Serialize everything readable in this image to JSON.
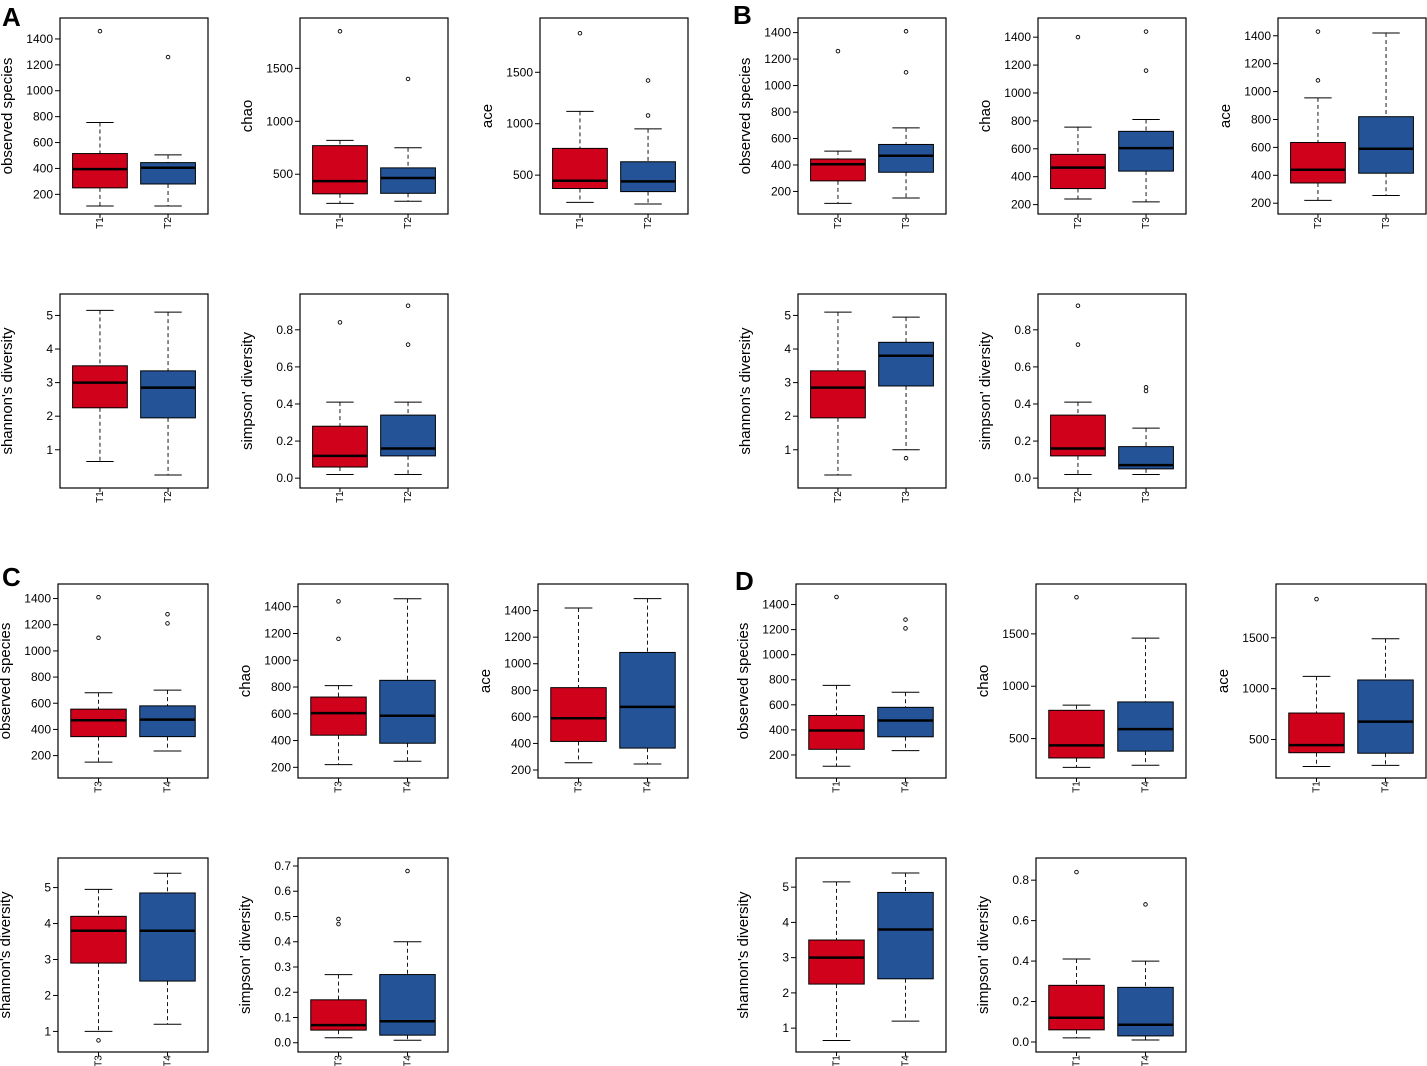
{
  "colors": {
    "first": "#d0021b",
    "second": "#245497"
  },
  "panels": [
    {
      "label": "A",
      "groups": [
        "T1",
        "T2"
      ]
    },
    {
      "label": "B",
      "groups": [
        "T2",
        "T3"
      ]
    },
    {
      "label": "C",
      "groups": [
        "T3",
        "T4"
      ]
    },
    {
      "label": "D",
      "groups": [
        "T1",
        "T4"
      ]
    }
  ],
  "chart_data": [
    {
      "panel": "A",
      "type": "box",
      "ylabel": "observed species",
      "categories": [
        "T1",
        "T2"
      ],
      "yticks": [
        200,
        400,
        600,
        800,
        1000,
        1200,
        1400
      ],
      "ylim": [
        110,
        1500
      ],
      "boxes": [
        {
          "whisker_low": 110,
          "q1": 250,
          "median": 395,
          "q3": 515,
          "whisker_high": 755,
          "outliers": [
            1460
          ]
        },
        {
          "whisker_low": 110,
          "q1": 280,
          "median": 405,
          "q3": 445,
          "whisker_high": 505,
          "outliers": [
            1260
          ]
        }
      ]
    },
    {
      "panel": "A",
      "type": "box",
      "ylabel": "chao",
      "categories": [
        "T1",
        "T2"
      ],
      "yticks": [
        500,
        1000,
        1500
      ],
      "ylim": [
        200,
        1900
      ],
      "boxes": [
        {
          "whisker_low": 225,
          "q1": 315,
          "median": 435,
          "q3": 770,
          "whisker_high": 820,
          "outliers": [
            1850
          ]
        },
        {
          "whisker_low": 245,
          "q1": 320,
          "median": 465,
          "q3": 560,
          "whisker_high": 750,
          "outliers": [
            1400
          ]
        }
      ]
    },
    {
      "panel": "A",
      "type": "box",
      "ylabel": "ace",
      "categories": [
        "T1",
        "T2"
      ],
      "yticks": [
        500,
        1000,
        1500
      ],
      "ylim": [
        200,
        1950
      ],
      "boxes": [
        {
          "whisker_low": 235,
          "q1": 370,
          "median": 445,
          "q3": 760,
          "whisker_high": 1120,
          "outliers": [
            1880
          ]
        },
        {
          "whisker_low": 220,
          "q1": 340,
          "median": 440,
          "q3": 630,
          "whisker_high": 950,
          "outliers": [
            1080,
            1420
          ]
        }
      ]
    },
    {
      "panel": "A",
      "type": "box",
      "ylabel": "shannon's diversity",
      "categories": [
        "T1",
        "T2"
      ],
      "yticks": [
        1,
        2,
        3,
        4,
        5
      ],
      "ylim": [
        0.1,
        5.4
      ],
      "boxes": [
        {
          "whisker_low": 0.65,
          "q1": 2.25,
          "median": 3.0,
          "q3": 3.5,
          "whisker_high": 5.15,
          "outliers": []
        },
        {
          "whisker_low": 0.25,
          "q1": 1.95,
          "median": 2.85,
          "q3": 3.35,
          "whisker_high": 5.1,
          "outliers": []
        }
      ]
    },
    {
      "panel": "A",
      "type": "box",
      "ylabel": "simpson' diversity",
      "categories": [
        "T1",
        "T2"
      ],
      "yticks": [
        0.0,
        0.2,
        0.4,
        0.6,
        0.8
      ],
      "ylim": [
        -0.01,
        0.95
      ],
      "boxes": [
        {
          "whisker_low": 0.02,
          "q1": 0.06,
          "median": 0.12,
          "q3": 0.28,
          "whisker_high": 0.41,
          "outliers": [
            0.84
          ]
        },
        {
          "whisker_low": 0.02,
          "q1": 0.12,
          "median": 0.16,
          "q3": 0.34,
          "whisker_high": 0.41,
          "outliers": [
            0.72,
            0.93
          ]
        }
      ]
    },
    {
      "panel": "B",
      "type": "box",
      "ylabel": "observed species",
      "categories": [
        "T2",
        "T3"
      ],
      "yticks": [
        200,
        400,
        600,
        800,
        1000,
        1200,
        1400
      ],
      "ylim": [
        90,
        1450
      ],
      "boxes": [
        {
          "whisker_low": 110,
          "q1": 280,
          "median": 405,
          "q3": 445,
          "whisker_high": 505,
          "outliers": [
            1260
          ]
        },
        {
          "whisker_low": 150,
          "q1": 345,
          "median": 470,
          "q3": 555,
          "whisker_high": 680,
          "outliers": [
            1100,
            1410
          ]
        }
      ]
    },
    {
      "panel": "B",
      "type": "box",
      "ylabel": "chao",
      "categories": [
        "T2",
        "T3"
      ],
      "yticks": [
        200,
        400,
        600,
        800,
        1000,
        1200,
        1400
      ],
      "ylim": [
        190,
        1480
      ],
      "boxes": [
        {
          "whisker_low": 240,
          "q1": 315,
          "median": 465,
          "q3": 560,
          "whisker_high": 755,
          "outliers": [
            1400
          ]
        },
        {
          "whisker_low": 220,
          "q1": 440,
          "median": 605,
          "q3": 725,
          "whisker_high": 810,
          "outliers": [
            1160,
            1440
          ]
        }
      ]
    },
    {
      "panel": "B",
      "type": "box",
      "ylabel": "ace",
      "categories": [
        "T2",
        "T3"
      ],
      "yticks": [
        200,
        400,
        600,
        800,
        1000,
        1200,
        1400
      ],
      "ylim": [
        180,
        1470
      ],
      "boxes": [
        {
          "whisker_low": 220,
          "q1": 345,
          "median": 440,
          "q3": 635,
          "whisker_high": 955,
          "outliers": [
            1080,
            1430
          ]
        },
        {
          "whisker_low": 255,
          "q1": 415,
          "median": 590,
          "q3": 820,
          "whisker_high": 1420,
          "outliers": []
        }
      ]
    },
    {
      "panel": "B",
      "type": "box",
      "ylabel": "shannon's diversity",
      "categories": [
        "T2",
        "T3"
      ],
      "yticks": [
        1,
        2,
        3,
        4,
        5
      ],
      "ylim": [
        0.1,
        5.4
      ],
      "boxes": [
        {
          "whisker_low": 0.25,
          "q1": 1.95,
          "median": 2.85,
          "q3": 3.35,
          "whisker_high": 5.1,
          "outliers": []
        },
        {
          "whisker_low": 1.0,
          "q1": 2.9,
          "median": 3.8,
          "q3": 4.2,
          "whisker_high": 4.95,
          "outliers": [
            0.75
          ]
        }
      ]
    },
    {
      "panel": "B",
      "type": "box",
      "ylabel": "simpson' diversity",
      "categories": [
        "T2",
        "T3"
      ],
      "yticks": [
        0.0,
        0.2,
        0.4,
        0.6,
        0.8
      ],
      "ylim": [
        -0.01,
        0.95
      ],
      "boxes": [
        {
          "whisker_low": 0.02,
          "q1": 0.12,
          "median": 0.16,
          "q3": 0.34,
          "whisker_high": 0.41,
          "outliers": [
            0.72,
            0.93
          ]
        },
        {
          "whisker_low": 0.02,
          "q1": 0.05,
          "median": 0.07,
          "q3": 0.17,
          "whisker_high": 0.27,
          "outliers": [
            0.47,
            0.49
          ]
        }
      ]
    },
    {
      "panel": "C",
      "type": "box",
      "ylabel": "observed species",
      "categories": [
        "T3",
        "T4"
      ],
      "yticks": [
        200,
        400,
        600,
        800,
        1000,
        1200,
        1400
      ],
      "ylim": [
        90,
        1450
      ],
      "boxes": [
        {
          "whisker_low": 150,
          "q1": 345,
          "median": 470,
          "q3": 555,
          "whisker_high": 680,
          "outliers": [
            1100,
            1410
          ]
        },
        {
          "whisker_low": 235,
          "q1": 345,
          "median": 475,
          "q3": 580,
          "whisker_high": 700,
          "outliers": [
            1210,
            1280
          ]
        }
      ]
    },
    {
      "panel": "C",
      "type": "box",
      "ylabel": "chao",
      "categories": [
        "T3",
        "T4"
      ],
      "yticks": [
        200,
        400,
        600,
        800,
        1000,
        1200,
        1400
      ],
      "ylim": [
        180,
        1510
      ],
      "boxes": [
        {
          "whisker_low": 220,
          "q1": 440,
          "median": 605,
          "q3": 725,
          "whisker_high": 810,
          "outliers": [
            1160,
            1440
          ]
        },
        {
          "whisker_low": 245,
          "q1": 380,
          "median": 585,
          "q3": 850,
          "whisker_high": 1460,
          "outliers": []
        }
      ]
    },
    {
      "panel": "C",
      "type": "box",
      "ylabel": "ace",
      "categories": [
        "T3",
        "T4"
      ],
      "yticks": [
        200,
        400,
        600,
        800,
        1000,
        1200,
        1400
      ],
      "ylim": [
        200,
        1540
      ],
      "boxes": [
        {
          "whisker_low": 255,
          "q1": 415,
          "median": 590,
          "q3": 820,
          "whisker_high": 1420,
          "outliers": []
        },
        {
          "whisker_low": 245,
          "q1": 365,
          "median": 675,
          "q3": 1085,
          "whisker_high": 1490,
          "outliers": []
        }
      ]
    },
    {
      "panel": "C",
      "type": "box",
      "ylabel": "shannon's diversity",
      "categories": [
        "T3",
        "T4"
      ],
      "yticks": [
        1,
        2,
        3,
        4,
        5
      ],
      "ylim": [
        0.65,
        5.6
      ],
      "boxes": [
        {
          "whisker_low": 1.0,
          "q1": 2.9,
          "median": 3.8,
          "q3": 4.2,
          "whisker_high": 4.95,
          "outliers": [
            0.75
          ]
        },
        {
          "whisker_low": 1.2,
          "q1": 2.4,
          "median": 3.8,
          "q3": 4.85,
          "whisker_high": 5.4,
          "outliers": []
        }
      ]
    },
    {
      "panel": "C",
      "type": "box",
      "ylabel": "simpson' diversity",
      "categories": [
        "T3",
        "T4"
      ],
      "yticks": [
        0.0,
        0.1,
        0.2,
        0.3,
        0.4,
        0.5,
        0.6,
        0.7
      ],
      "ylim": [
        -0.005,
        0.7
      ],
      "boxes": [
        {
          "whisker_low": 0.02,
          "q1": 0.05,
          "median": 0.07,
          "q3": 0.17,
          "whisker_high": 0.27,
          "outliers": [
            0.47,
            0.49
          ]
        },
        {
          "whisker_low": 0.01,
          "q1": 0.03,
          "median": 0.085,
          "q3": 0.27,
          "whisker_high": 0.4,
          "outliers": [
            0.68
          ]
        }
      ]
    },
    {
      "panel": "D",
      "type": "box",
      "ylabel": "observed species",
      "categories": [
        "T1",
        "T4"
      ],
      "yticks": [
        200,
        400,
        600,
        800,
        1000,
        1200,
        1400
      ],
      "ylim": [
        80,
        1500
      ],
      "boxes": [
        {
          "whisker_low": 110,
          "q1": 245,
          "median": 395,
          "q3": 515,
          "whisker_high": 755,
          "outliers": [
            1460
          ]
        },
        {
          "whisker_low": 235,
          "q1": 345,
          "median": 475,
          "q3": 580,
          "whisker_high": 700,
          "outliers": [
            1210,
            1280
          ]
        }
      ]
    },
    {
      "panel": "D",
      "type": "box",
      "ylabel": "chao",
      "categories": [
        "T1",
        "T4"
      ],
      "yticks": [
        500,
        1000,
        1500
      ],
      "ylim": [
        200,
        1900
      ],
      "boxes": [
        {
          "whisker_low": 225,
          "q1": 315,
          "median": 435,
          "q3": 770,
          "whisker_high": 820,
          "outliers": [
            1850
          ]
        },
        {
          "whisker_low": 245,
          "q1": 380,
          "median": 590,
          "q3": 850,
          "whisker_high": 1460,
          "outliers": []
        }
      ]
    },
    {
      "panel": "D",
      "type": "box",
      "ylabel": "ace",
      "categories": [
        "T1",
        "T4"
      ],
      "yticks": [
        500,
        1000,
        1500
      ],
      "ylim": [
        200,
        1950
      ],
      "boxes": [
        {
          "whisker_low": 235,
          "q1": 370,
          "median": 445,
          "q3": 760,
          "whisker_high": 1120,
          "outliers": [
            1880
          ]
        },
        {
          "whisker_low": 245,
          "q1": 365,
          "median": 675,
          "q3": 1085,
          "whisker_high": 1490,
          "outliers": []
        }
      ]
    },
    {
      "panel": "D",
      "type": "box",
      "ylabel": "shannon's diversity",
      "categories": [
        "T1",
        "T4"
      ],
      "yticks": [
        1,
        2,
        3,
        4,
        5
      ],
      "ylim": [
        0.55,
        5.6
      ],
      "boxes": [
        {
          "whisker_low": 0.65,
          "q1": 2.25,
          "median": 3.0,
          "q3": 3.5,
          "whisker_high": 5.15,
          "outliers": []
        },
        {
          "whisker_low": 1.2,
          "q1": 2.4,
          "median": 3.8,
          "q3": 4.85,
          "whisker_high": 5.4,
          "outliers": []
        }
      ]
    },
    {
      "panel": "D",
      "type": "box",
      "ylabel": "simpson' diversity",
      "categories": [
        "T1",
        "T4"
      ],
      "yticks": [
        0.0,
        0.2,
        0.4,
        0.6,
        0.8
      ],
      "ylim": [
        -0.01,
        0.87
      ],
      "boxes": [
        {
          "whisker_low": 0.02,
          "q1": 0.06,
          "median": 0.12,
          "q3": 0.28,
          "whisker_high": 0.41,
          "outliers": [
            0.84
          ]
        },
        {
          "whisker_low": 0.01,
          "q1": 0.03,
          "median": 0.085,
          "q3": 0.27,
          "whisker_high": 0.4,
          "outliers": [
            0.68
          ]
        }
      ]
    }
  ]
}
